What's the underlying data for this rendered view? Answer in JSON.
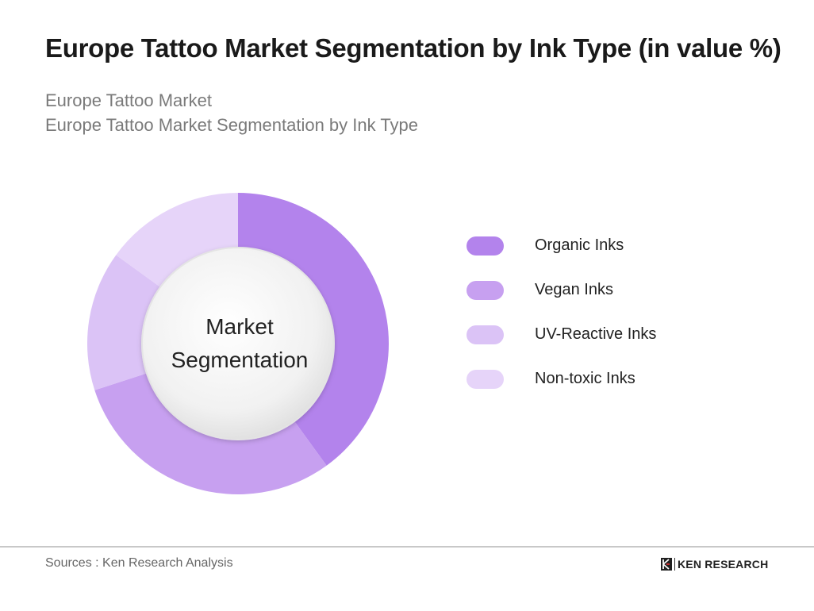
{
  "header": {
    "title": "Europe Tattoo Market Segmentation by Ink Type (in value %)",
    "subtitle_line1": "Europe Tattoo Market",
    "subtitle_line2": "Europe Tattoo Market Segmentation by Ink Type"
  },
  "chart_data": {
    "type": "pie",
    "style": "donut",
    "center_label_line1": "Market",
    "center_label_line2": "Segmentation",
    "categories": [
      "Organic Inks",
      "Vegan Inks",
      "UV-Reactive Inks",
      "Non-toxic Inks"
    ],
    "values": [
      40,
      30,
      15,
      15
    ],
    "colors": [
      "#b383ec",
      "#c7a0f0",
      "#dbc3f6",
      "#e6d4f9"
    ],
    "legend_position": "right"
  },
  "legend": {
    "items": [
      {
        "label": "Organic Inks",
        "color": "#b383ec"
      },
      {
        "label": "Vegan Inks",
        "color": "#c7a0f0"
      },
      {
        "label": "UV-Reactive Inks",
        "color": "#dbc3f6"
      },
      {
        "label": "Non-toxic Inks",
        "color": "#e6d4f9"
      }
    ]
  },
  "footer": {
    "source": "Sources : Ken Research Analysis",
    "logo_text": "KEN RESEARCH"
  }
}
